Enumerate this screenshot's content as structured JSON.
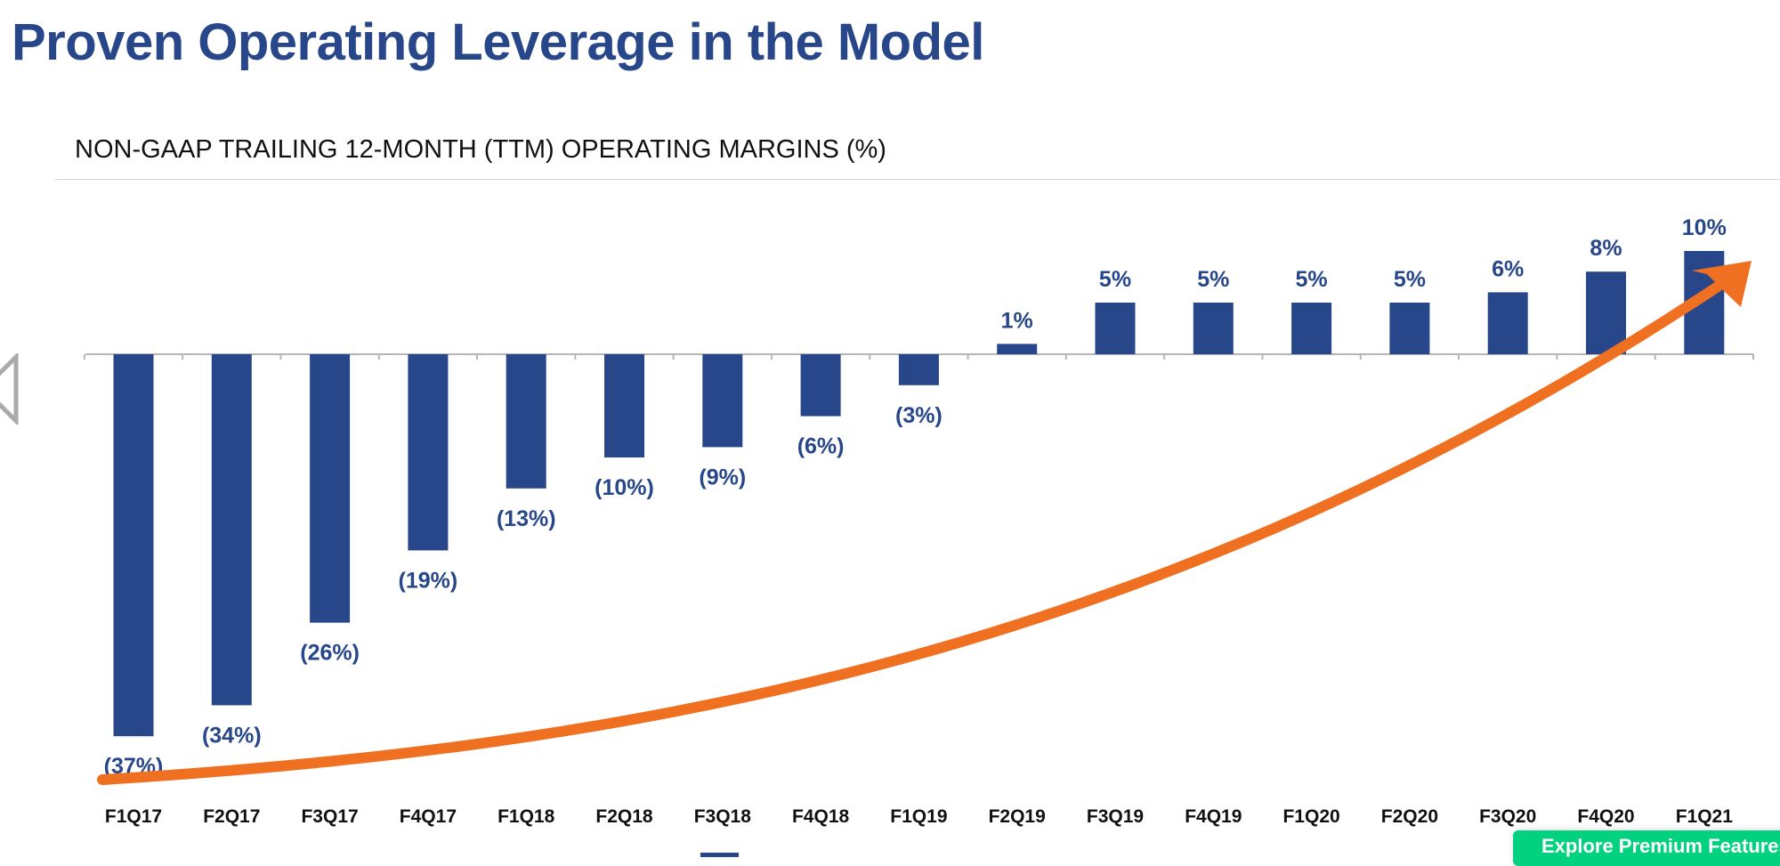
{
  "title": "Proven Operating Leverage in the Model",
  "chart_data": {
    "type": "bar",
    "title": "NON-GAAP TRAILING 12-MONTH (TTM) OPERATING MARGINS (%)",
    "categories": [
      "F1Q17",
      "F2Q17",
      "F3Q17",
      "F4Q17",
      "F1Q18",
      "F2Q18",
      "F3Q18",
      "F4Q18",
      "F1Q19",
      "F2Q19",
      "F3Q19",
      "F4Q19",
      "F1Q20",
      "F2Q20",
      "F3Q20",
      "F4Q20",
      "F1Q21"
    ],
    "values": [
      -37,
      -34,
      -26,
      -19,
      -13,
      -10,
      -9,
      -6,
      -3,
      1,
      5,
      5,
      5,
      5,
      6,
      8,
      10
    ],
    "data_labels": [
      "(37%)",
      "(34%)",
      "(26%)",
      "(19%)",
      "(13%)",
      "(10%)",
      "(9%)",
      "(6%)",
      "(3%)",
      "1%",
      "5%",
      "5%",
      "5%",
      "5%",
      "6%",
      "8%",
      "10%"
    ],
    "xlabel": "",
    "ylabel": "",
    "ylim": [
      -40,
      12
    ],
    "grid": false,
    "colors": {
      "bar": "#27478a",
      "label": "#27478a",
      "trend_arrow": "#f07022"
    },
    "annotations": [
      "orange upward-trend arrow"
    ]
  },
  "overlay": {
    "premium_button": "Explore Premium Features",
    "nav_icon": "previous-slide-icon"
  }
}
